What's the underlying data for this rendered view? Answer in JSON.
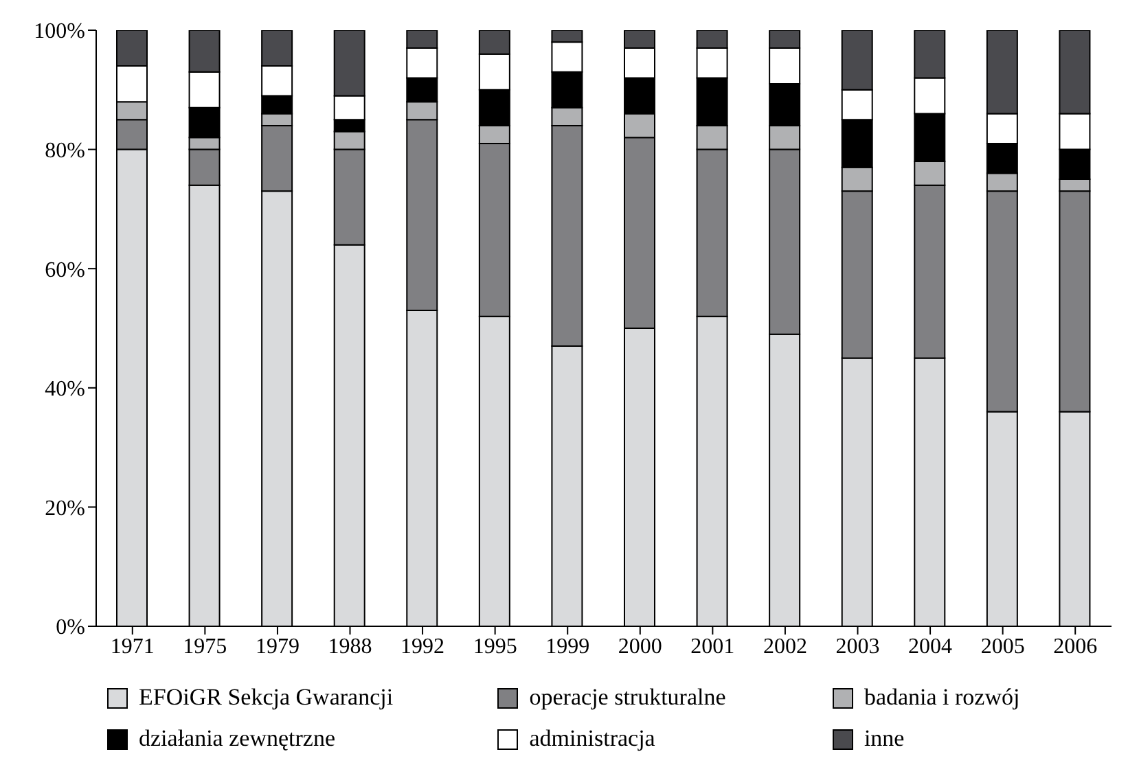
{
  "chart_data": {
    "type": "bar",
    "stacked": true,
    "categories": [
      "1971",
      "1975",
      "1979",
      "1988",
      "1992",
      "1995",
      "1999",
      "2000",
      "2001",
      "2002",
      "2003",
      "2004",
      "2005",
      "2006"
    ],
    "series": [
      {
        "name": "EFOiGR Sekcja Gwarancji",
        "color": "#d9dadc",
        "values": [
          80,
          74,
          73,
          64,
          53,
          52,
          47,
          50,
          52,
          49,
          45,
          45,
          36,
          36
        ]
      },
      {
        "name": "operacje strukturalne",
        "color": "#808083",
        "values": [
          5,
          6,
          11,
          16,
          32,
          29,
          37,
          32,
          28,
          31,
          28,
          29,
          37,
          37
        ]
      },
      {
        "name": "badania i rozwój",
        "color": "#b0b1b3",
        "values": [
          3,
          2,
          2,
          3,
          3,
          3,
          3,
          4,
          4,
          4,
          4,
          4,
          3,
          2
        ]
      },
      {
        "name": "działania zewnętrzne",
        "color": "#000000",
        "values": [
          0,
          5,
          3,
          2,
          4,
          6,
          6,
          6,
          8,
          7,
          8,
          8,
          5,
          5
        ]
      },
      {
        "name": "administracja",
        "color": "#ffffff",
        "values": [
          6,
          6,
          5,
          4,
          5,
          6,
          5,
          5,
          5,
          6,
          5,
          6,
          5,
          6
        ]
      },
      {
        "name": "inne",
        "color": "#4a4a4e",
        "values": [
          6,
          7,
          6,
          11,
          3,
          4,
          2,
          3,
          3,
          3,
          10,
          8,
          14,
          14
        ]
      }
    ],
    "ylim": [
      0,
      100
    ],
    "yticks": [
      {
        "value": 0,
        "label": "0%"
      },
      {
        "value": 20,
        "label": "20%"
      },
      {
        "value": 40,
        "label": "40%"
      },
      {
        "value": 60,
        "label": "60%"
      },
      {
        "value": 80,
        "label": "80%"
      },
      {
        "value": 100,
        "label": "100%"
      }
    ],
    "grid": false,
    "legend": "bottom"
  }
}
